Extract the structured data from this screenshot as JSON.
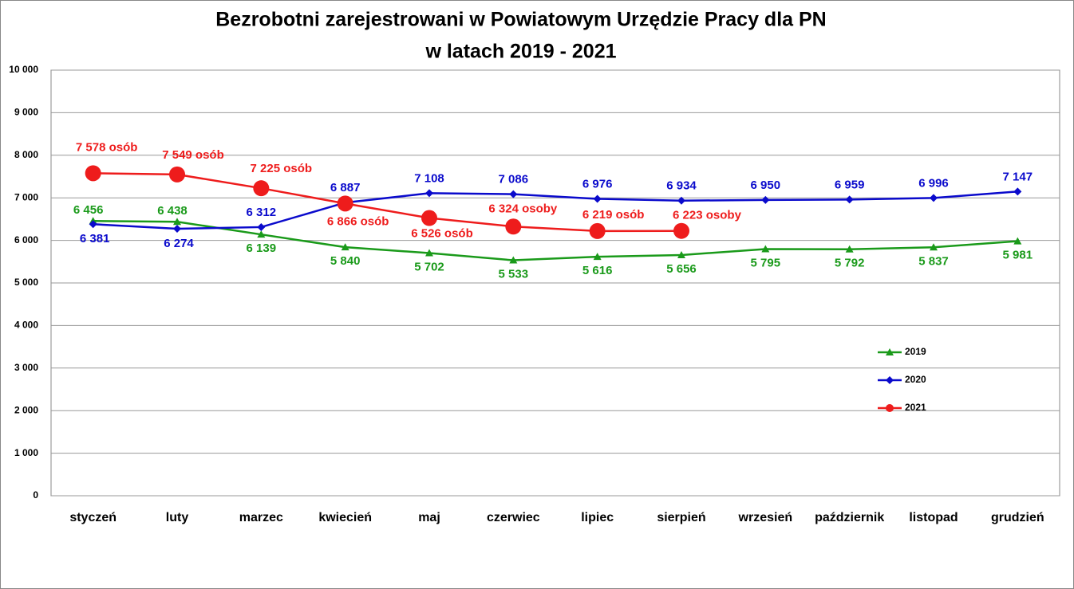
{
  "chart_data": {
    "type": "line",
    "title": [
      "Bezrobotni zarejestrowani w Powiatowym Urzędzie Pracy dla PN",
      "w latach 2019 - 2021"
    ],
    "categories": [
      "styczeń",
      "luty",
      "marzec",
      "kwiecień",
      "maj",
      "czerwiec",
      "lipiec",
      "sierpień",
      "wrzesień",
      "październik",
      "listopad",
      "grudzień"
    ],
    "ylim": [
      0,
      10000
    ],
    "yticks": [
      0,
      {
        "value": 1000,
        "label": "1 000"
      },
      {
        "value": 2000,
        "label": "2 000"
      },
      {
        "value": 3000,
        "label": "3 000"
      },
      {
        "value": 4000,
        "label": "4 000"
      },
      {
        "value": 5000,
        "label": "5 000"
      },
      {
        "value": 6000,
        "label": "6 000"
      },
      {
        "value": 7000,
        "label": "7 000"
      },
      {
        "value": 8000,
        "label": "8 000"
      },
      {
        "value": 9000,
        "label": "9 000"
      },
      {
        "value": 10000,
        "label": "10 000"
      }
    ],
    "grid": true,
    "legend": "right",
    "series": [
      {
        "name": "2019",
        "color": "#1a9a1a",
        "marker": "triangle",
        "values": [
          6456,
          6438,
          6139,
          5840,
          5702,
          5533,
          5616,
          5656,
          5795,
          5792,
          5837,
          5981
        ],
        "value_labels": [
          "6 456",
          "6 438",
          "6 139",
          "5 840",
          "5 702",
          "5 533",
          "5 616",
          "5 656",
          "5 795",
          "5 792",
          "5 837",
          "5 981"
        ]
      },
      {
        "name": "2020",
        "color": "#0a0acc",
        "marker": "diamond",
        "values": [
          6381,
          6274,
          6312,
          6887,
          7108,
          7086,
          6976,
          6934,
          6950,
          6959,
          6996,
          7147
        ],
        "value_labels": [
          "6 381",
          "6 274",
          "6 312",
          "6 887",
          "7 108",
          "7 086",
          "6 976",
          "6 934",
          "6 950",
          "6 959",
          "6 996",
          "7 147"
        ]
      },
      {
        "name": "2021",
        "color": "#ee1c1c",
        "marker": "circle",
        "values": [
          7578,
          7549,
          7225,
          6866,
          6526,
          6324,
          6219,
          6223,
          null,
          null,
          null,
          null
        ],
        "value_labels": [
          "7 578 osób",
          "7 549 osób",
          "7 225 osób",
          "6 866 osób",
          "6 526 osób",
          "6 324 osoby",
          "6 219 osób",
          "6 223 osoby",
          null,
          null,
          null,
          null
        ]
      }
    ]
  }
}
